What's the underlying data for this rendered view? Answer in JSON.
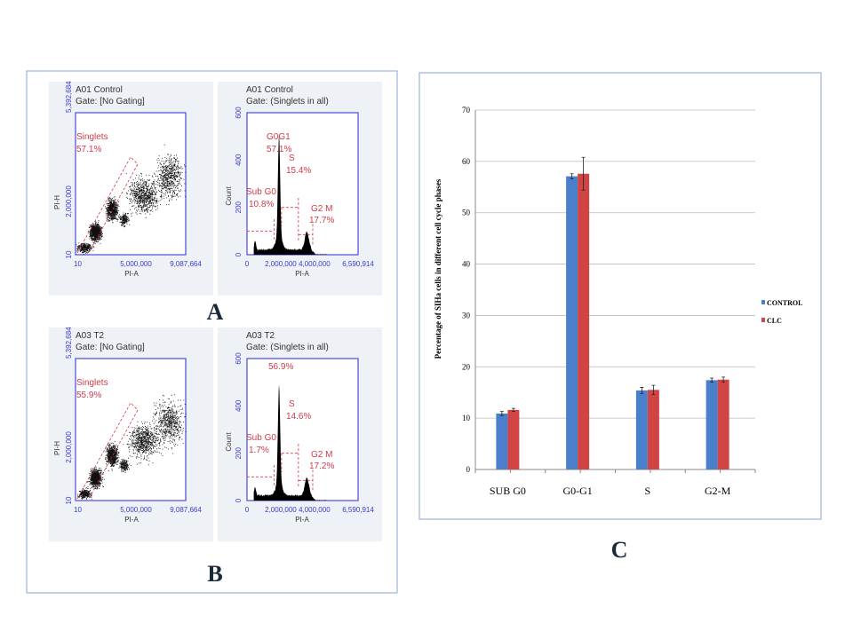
{
  "panels": {
    "A": {
      "label": "A",
      "scatter": {
        "sample": "A01 Control",
        "gate": "Gate: [No Gating]",
        "gate_name": "Singlets",
        "gate_pct": "57.1%",
        "x_label": "PI-A",
        "y_label": "PI-H",
        "x_ticks": [
          "10",
          "5,000,000",
          "9,087,664"
        ],
        "y_ticks": [
          "10",
          "2,000,000",
          "5,392,684"
        ]
      },
      "histogram": {
        "sample": "A01 Control",
        "gate": "Gate: (Singlets in all)",
        "x_label": "PI-A",
        "y_label": "Count",
        "x_ticks": [
          "0",
          "2,000,000",
          "4,000,000",
          "6,590,914"
        ],
        "y_ticks": [
          "0",
          "200",
          "400",
          "600"
        ],
        "g0g1_name": "G0G1",
        "g0g1_pct": "57.1%",
        "s_name": "S",
        "s_pct": "15.4%",
        "subg0_name": "Sub G0",
        "subg0_pct": "10.8%",
        "g2m_name": "G2 M",
        "g2m_pct": "17.7%"
      }
    },
    "B": {
      "label": "B",
      "scatter": {
        "sample": "A03 T2",
        "gate": "Gate: [No Gating]",
        "gate_name": "Singlets",
        "gate_pct": "55.9%",
        "x_label": "PI-A",
        "y_label": "PI-H",
        "x_ticks": [
          "10",
          "5,000,000",
          "9,087,664"
        ],
        "y_ticks": [
          "10",
          "2,000,000",
          "5,392,684"
        ]
      },
      "histogram": {
        "sample": "A03 T2",
        "gate": "Gate: (Singlets in all)",
        "x_label": "PI-A",
        "y_label": "Count",
        "x_ticks": [
          "0",
          "2,000,000",
          "4,000,000",
          "6,590,914"
        ],
        "y_ticks": [
          "0",
          "200",
          "400",
          "600"
        ],
        "g0g1_pct": "56.9%",
        "s_name": "S",
        "s_pct": "14.6%",
        "subg0_name": "Sub G0",
        "subg0_pct": "1.7%",
        "g2m_name": "G2 M",
        "g2m_pct": "17.2%"
      }
    },
    "C": {
      "label": "C"
    }
  },
  "chart_data": {
    "type": "bar",
    "categories": [
      "SUB G0",
      "G0-G1",
      "S",
      "G2-M"
    ],
    "series": [
      {
        "name": "CONTROL",
        "color": "#4a7fcc",
        "values": [
          10.9,
          57.1,
          15.4,
          17.4
        ],
        "errors": [
          0.4,
          0.5,
          0.6,
          0.4
        ]
      },
      {
        "name": "CLC",
        "color": "#d04444",
        "values": [
          11.6,
          57.6,
          15.5,
          17.5
        ],
        "errors": [
          0.3,
          3.2,
          0.9,
          0.5
        ]
      }
    ],
    "xlabel": "",
    "ylabel": "Percentage of SIHa cells in different cell cycle phases",
    "ylim": [
      0,
      70
    ],
    "yticks": [
      "0",
      "10",
      "20",
      "30",
      "40",
      "50",
      "60",
      "70"
    ],
    "grid": true,
    "legend": "right"
  }
}
